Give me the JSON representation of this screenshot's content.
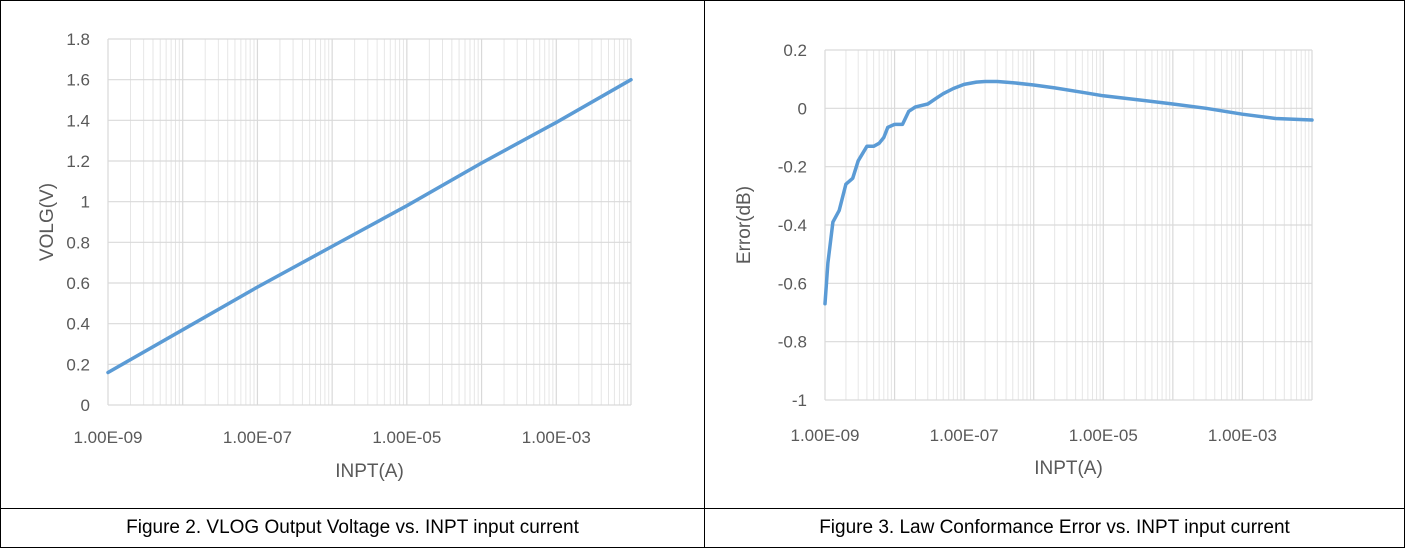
{
  "captions": {
    "left": "Figure 2. VLOG Output Voltage vs. INPT input current",
    "right": "Figure 3. Law Conformance Error vs. INPT input current"
  },
  "colors": {
    "series": "#5b9bd5",
    "grid": "#d9d9d9",
    "minor_grid": "#e6e6e6",
    "axis_text": "#595959"
  },
  "chart_data": [
    {
      "type": "line",
      "title": "",
      "xlabel": "INPT(A)",
      "ylabel": "VOLG(V)",
      "xscale": "log",
      "xlim": [
        1e-09,
        0.01
      ],
      "ylim": [
        0,
        1.8
      ],
      "x_tick_labels": [
        "1.00E-09",
        "1.00E-07",
        "1.00E-05",
        "1.00E-03"
      ],
      "y_tick_labels": [
        "0",
        "0.2",
        "0.4",
        "0.6",
        "0.8",
        "1",
        "1.2",
        "1.4",
        "1.6",
        "1.8"
      ],
      "grid": true,
      "legend": "none",
      "series": [
        {
          "x": [
            1e-09,
            1e-08,
            1e-07,
            1e-06,
            1e-05,
            0.0001,
            0.001,
            0.01
          ],
          "y": [
            0.16,
            0.37,
            0.58,
            0.78,
            0.98,
            1.19,
            1.39,
            1.6
          ]
        }
      ]
    },
    {
      "type": "line",
      "title": "",
      "xlabel": "INPT(A)",
      "ylabel": "Error(dB)",
      "xscale": "log",
      "xlim": [
        1e-09,
        0.01
      ],
      "ylim": [
        -1,
        0.2
      ],
      "x_tick_labels": [
        "1.00E-09",
        "1.00E-07",
        "1.00E-05",
        "1.00E-03"
      ],
      "y_tick_labels": [
        "-1",
        "-0.8",
        "-0.6",
        "-0.4",
        "-0.2",
        "0",
        "0.2"
      ],
      "grid": true,
      "legend": "none",
      "series": [
        {
          "x": [
            1e-09,
            1.1e-09,
            1.3e-09,
            1.6e-09,
            2e-09,
            2.5e-09,
            3e-09,
            4e-09,
            5e-09,
            6e-09,
            7e-09,
            8e-09,
            1e-08,
            1.3e-08,
            1.6e-08,
            2e-08,
            3e-08,
            4e-08,
            5e-08,
            7e-08,
            1e-07,
            1.5e-07,
            2e-07,
            3e-07,
            5e-07,
            1e-06,
            2e-06,
            5e-06,
            1e-05,
            3e-05,
            0.0001,
            0.0003,
            0.001,
            0.003,
            0.01
          ],
          "y": [
            -0.67,
            -0.53,
            -0.39,
            -0.35,
            -0.26,
            -0.24,
            -0.18,
            -0.13,
            -0.13,
            -0.12,
            -0.1,
            -0.065,
            -0.055,
            -0.055,
            -0.01,
            0.005,
            0.015,
            0.035,
            0.05,
            0.068,
            0.082,
            0.09,
            0.092,
            0.092,
            0.088,
            0.08,
            0.07,
            0.055,
            0.043,
            0.03,
            0.015,
            0.0,
            -0.02,
            -0.035,
            -0.04
          ]
        }
      ]
    }
  ]
}
